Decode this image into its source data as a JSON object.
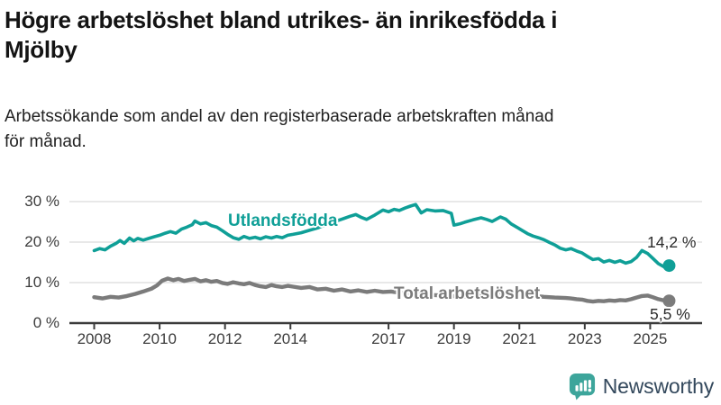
{
  "header": {
    "title_lines": [
      "Högre arbetslöshet bland utrikes- än inrikesfödda i",
      "Mjölby"
    ],
    "subtitle_lines": [
      "Arbetssökande som andel av den registerbaserade arbetskraften månad",
      "för månad."
    ]
  },
  "chart_data": {
    "type": "line",
    "title": "Högre arbetslöshet bland utrikes- än inrikesfödda i Mjölby",
    "subtitle": "Arbetssökande som andel av den registerbaserade arbetskraften månad för månad.",
    "unit": "%",
    "grid": true,
    "x_domain": [
      2007.6,
      2025.65
    ],
    "ylim": [
      0,
      30
    ],
    "x_ticks": [
      2008,
      2010,
      2012,
      2014,
      2017,
      2019,
      2021,
      2023,
      2025
    ],
    "x_tick_labels": [
      "2008",
      "2010",
      "2012",
      "2014",
      "2017",
      "2019",
      "2021",
      "2023",
      "2025"
    ],
    "y_ticks": [
      0,
      10,
      20,
      30
    ],
    "y_tick_labels": [
      "0 %",
      "10 %",
      "20 %",
      "30 %"
    ],
    "axis_color": "#3b3b3b",
    "grid_color": "#dbdbdb",
    "series": [
      {
        "name": "Utlandsfödda",
        "color": "#0f9f97",
        "end_label": "14,2 %",
        "end_value": 14.2,
        "points": [
          [
            2008.0,
            17.9
          ],
          [
            2008.17,
            18.4
          ],
          [
            2008.33,
            18.1
          ],
          [
            2008.5,
            19.0
          ],
          [
            2008.67,
            19.7
          ],
          [
            2008.79,
            20.4
          ],
          [
            2008.92,
            19.7
          ],
          [
            2009.08,
            21.0
          ],
          [
            2009.21,
            20.3
          ],
          [
            2009.33,
            20.9
          ],
          [
            2009.5,
            20.5
          ],
          [
            2009.67,
            20.9
          ],
          [
            2009.83,
            21.3
          ],
          [
            2010.0,
            21.7
          ],
          [
            2010.17,
            22.2
          ],
          [
            2010.33,
            22.6
          ],
          [
            2010.5,
            22.2
          ],
          [
            2010.67,
            23.2
          ],
          [
            2010.83,
            23.7
          ],
          [
            2011.0,
            24.3
          ],
          [
            2011.08,
            25.2
          ],
          [
            2011.25,
            24.5
          ],
          [
            2011.42,
            24.8
          ],
          [
            2011.58,
            24.1
          ],
          [
            2011.75,
            23.7
          ],
          [
            2011.92,
            22.8
          ],
          [
            2012.08,
            21.9
          ],
          [
            2012.25,
            21.1
          ],
          [
            2012.42,
            20.7
          ],
          [
            2012.58,
            21.4
          ],
          [
            2012.75,
            20.9
          ],
          [
            2012.92,
            21.2
          ],
          [
            2013.08,
            20.8
          ],
          [
            2013.25,
            21.3
          ],
          [
            2013.42,
            21.0
          ],
          [
            2013.58,
            21.4
          ],
          [
            2013.75,
            21.1
          ],
          [
            2013.92,
            21.7
          ],
          [
            2014.08,
            21.9
          ],
          [
            2014.33,
            22.3
          ],
          [
            2014.58,
            22.9
          ],
          [
            2014.83,
            23.5
          ],
          [
            2015.08,
            24.3
          ],
          [
            2015.33,
            25.0
          ],
          [
            2015.58,
            25.7
          ],
          [
            2015.83,
            26.4
          ],
          [
            2016.0,
            26.8
          ],
          [
            2016.17,
            26.1
          ],
          [
            2016.33,
            25.6
          ],
          [
            2016.58,
            26.7
          ],
          [
            2016.83,
            27.9
          ],
          [
            2017.0,
            27.5
          ],
          [
            2017.17,
            28.1
          ],
          [
            2017.33,
            27.8
          ],
          [
            2017.5,
            28.4
          ],
          [
            2017.67,
            28.9
          ],
          [
            2017.83,
            29.3
          ],
          [
            2018.0,
            27.2
          ],
          [
            2018.17,
            28.0
          ],
          [
            2018.42,
            27.7
          ],
          [
            2018.67,
            27.8
          ],
          [
            2018.92,
            27.1
          ],
          [
            2019.0,
            24.2
          ],
          [
            2019.17,
            24.5
          ],
          [
            2019.33,
            24.9
          ],
          [
            2019.58,
            25.5
          ],
          [
            2019.83,
            26.0
          ],
          [
            2020.0,
            25.6
          ],
          [
            2020.17,
            25.1
          ],
          [
            2020.42,
            26.2
          ],
          [
            2020.58,
            25.7
          ],
          [
            2020.75,
            24.5
          ],
          [
            2020.92,
            23.7
          ],
          [
            2021.08,
            22.9
          ],
          [
            2021.25,
            22.1
          ],
          [
            2021.42,
            21.5
          ],
          [
            2021.58,
            21.1
          ],
          [
            2021.75,
            20.6
          ],
          [
            2021.92,
            19.9
          ],
          [
            2022.08,
            19.3
          ],
          [
            2022.25,
            18.5
          ],
          [
            2022.42,
            18.1
          ],
          [
            2022.58,
            18.4
          ],
          [
            2022.75,
            17.8
          ],
          [
            2022.92,
            17.3
          ],
          [
            2023.08,
            16.5
          ],
          [
            2023.25,
            15.7
          ],
          [
            2023.42,
            15.9
          ],
          [
            2023.58,
            15.1
          ],
          [
            2023.75,
            15.5
          ],
          [
            2023.92,
            15.0
          ],
          [
            2024.08,
            15.4
          ],
          [
            2024.25,
            14.8
          ],
          [
            2024.42,
            15.2
          ],
          [
            2024.58,
            16.2
          ],
          [
            2024.75,
            17.9
          ],
          [
            2024.92,
            17.2
          ],
          [
            2025.08,
            16.0
          ],
          [
            2025.25,
            14.7
          ],
          [
            2025.42,
            13.9
          ],
          [
            2025.58,
            14.2
          ]
        ]
      },
      {
        "name": "Total arbetslöshet",
        "color": "#7b7b7b",
        "end_label": "5,5 %",
        "end_value": 5.5,
        "points": [
          [
            2008.0,
            6.4
          ],
          [
            2008.25,
            6.1
          ],
          [
            2008.5,
            6.5
          ],
          [
            2008.75,
            6.3
          ],
          [
            2009.0,
            6.7
          ],
          [
            2009.25,
            7.2
          ],
          [
            2009.5,
            7.8
          ],
          [
            2009.75,
            8.5
          ],
          [
            2009.92,
            9.3
          ],
          [
            2010.08,
            10.5
          ],
          [
            2010.25,
            11.0
          ],
          [
            2010.42,
            10.6
          ],
          [
            2010.58,
            10.9
          ],
          [
            2010.75,
            10.4
          ],
          [
            2010.92,
            10.7
          ],
          [
            2011.08,
            10.9
          ],
          [
            2011.25,
            10.3
          ],
          [
            2011.42,
            10.6
          ],
          [
            2011.58,
            10.2
          ],
          [
            2011.75,
            10.4
          ],
          [
            2011.92,
            9.9
          ],
          [
            2012.08,
            9.7
          ],
          [
            2012.25,
            10.1
          ],
          [
            2012.42,
            9.8
          ],
          [
            2012.58,
            9.6
          ],
          [
            2012.75,
            9.9
          ],
          [
            2012.92,
            9.4
          ],
          [
            2013.08,
            9.1
          ],
          [
            2013.25,
            8.9
          ],
          [
            2013.42,
            9.4
          ],
          [
            2013.58,
            9.1
          ],
          [
            2013.75,
            8.9
          ],
          [
            2013.92,
            9.2
          ],
          [
            2014.08,
            9.0
          ],
          [
            2014.33,
            8.7
          ],
          [
            2014.58,
            8.9
          ],
          [
            2014.83,
            8.3
          ],
          [
            2015.08,
            8.5
          ],
          [
            2015.33,
            8.0
          ],
          [
            2015.58,
            8.3
          ],
          [
            2015.83,
            7.8
          ],
          [
            2016.08,
            8.1
          ],
          [
            2016.33,
            7.7
          ],
          [
            2016.58,
            8.0
          ],
          [
            2016.83,
            7.7
          ],
          [
            2017.08,
            7.8
          ],
          [
            2017.42,
            7.4
          ],
          [
            2017.75,
            7.2
          ],
          [
            2018.08,
            7.0
          ],
          [
            2018.42,
            6.9
          ],
          [
            2018.75,
            6.8
          ],
          [
            2019.08,
            6.6
          ],
          [
            2019.42,
            6.6
          ],
          [
            2019.75,
            6.8
          ],
          [
            2020.08,
            7.2
          ],
          [
            2020.42,
            7.6
          ],
          [
            2020.75,
            7.4
          ],
          [
            2021.08,
            7.1
          ],
          [
            2021.42,
            6.8
          ],
          [
            2021.75,
            6.5
          ],
          [
            2022.08,
            6.3
          ],
          [
            2022.42,
            6.2
          ],
          [
            2022.58,
            6.1
          ],
          [
            2022.75,
            5.9
          ],
          [
            2022.92,
            5.8
          ],
          [
            2023.08,
            5.5
          ],
          [
            2023.25,
            5.3
          ],
          [
            2023.42,
            5.5
          ],
          [
            2023.58,
            5.4
          ],
          [
            2023.75,
            5.6
          ],
          [
            2023.92,
            5.5
          ],
          [
            2024.08,
            5.7
          ],
          [
            2024.25,
            5.6
          ],
          [
            2024.42,
            5.9
          ],
          [
            2024.58,
            6.3
          ],
          [
            2024.75,
            6.7
          ],
          [
            2024.92,
            6.8
          ],
          [
            2025.08,
            6.4
          ],
          [
            2025.25,
            5.9
          ],
          [
            2025.42,
            5.6
          ],
          [
            2025.58,
            5.5
          ]
        ]
      }
    ],
    "legend_position": "inline-labels"
  },
  "footer": {
    "brand": "Newsworthy",
    "logo_color": "#3da59b",
    "logo_text_color": "#33485c",
    "logo_icon": "speech-bubble-bar-chart-exclamation"
  }
}
